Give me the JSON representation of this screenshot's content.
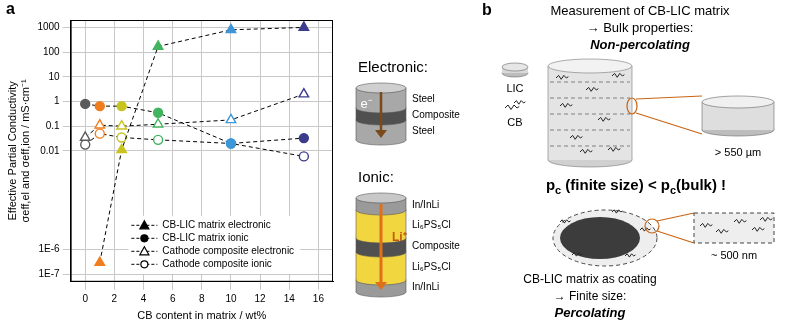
{
  "chart_data": {
    "type": "line",
    "x": [
      0,
      1,
      2.5,
      5,
      10,
      15
    ],
    "xlabel": "CB content in matrix / wt%",
    "ylabel": [
      "Effective Partial Conductivity",
      "σeff,el and σeff,ion / mS·cm⁻¹"
    ],
    "xlim": [
      -1,
      17
    ],
    "xticks": [
      0,
      2,
      4,
      6,
      8,
      10,
      12,
      14,
      16
    ],
    "ylim": [
      5e-08,
      2000
    ],
    "yticks": [
      {
        "value": 1e-07,
        "label": "1E-7"
      },
      {
        "value": 1e-06,
        "label": "1E-6"
      },
      0.01,
      0.1,
      1,
      10,
      100,
      1000
    ],
    "log": "y",
    "grid": true,
    "legend": "lower left",
    "colors": [
      "#5a5a5a",
      "#f07d1e",
      "#c8c31e",
      "#41b45f",
      "#3c96d7",
      "#3c3c8c"
    ],
    "series": [
      {
        "name": "CB-LIC matrix electronic",
        "color": "#000000",
        "marker": "triangle",
        "line_style": "dashed",
        "values": [
          null,
          3e-07,
          0.011,
          170,
          800,
          1000
        ]
      },
      {
        "name": "CB-LIC matrix ionic",
        "color": "#000000",
        "marker": "circle",
        "line_style": "dashed",
        "values": [
          0.8,
          0.65,
          0.65,
          0.35,
          0.02,
          0.033
        ]
      },
      {
        "name": "Cathode composite electronic",
        "color": "#000000",
        "marker": "triangle-open",
        "line_style": "dashed",
        "values": [
          0.035,
          0.11,
          0.1,
          0.12,
          0.18,
          2
        ]
      },
      {
        "name": "Cathode composite ionic",
        "color": "#000000",
        "marker": "circle-open",
        "line_style": "dashed",
        "values": [
          0.018,
          0.05,
          0.035,
          0.028,
          0.02,
          0.006
        ]
      }
    ]
  },
  "panel_labels": [
    "a",
    "b"
  ],
  "electronic_cell": {
    "title": "Electronic:",
    "carrier": "e⁻",
    "layers": [
      "Steel",
      "Composite",
      "Steel"
    ]
  },
  "ionic_cell": {
    "title": "Ionic:",
    "carrier": "Li⁺",
    "layers": [
      "In/InLi",
      "Li₆PS₅Cl",
      "Composite",
      "Li₆PS₅Cl",
      "In/InLi"
    ]
  },
  "panel_b": {
    "header": [
      "Measurement of CB-LIC matrix",
      "→ Bulk properties:"
    ],
    "bulk_state": "Non-percolating",
    "icons": [
      "LIC",
      "CB"
    ],
    "bulk_size": "> 550 µm",
    "statement": [
      {
        "text": "p"
      },
      {
        "text": "c",
        "sub": true
      },
      {
        "text": " (finite size) < p"
      },
      {
        "text": "c",
        "sub": true
      },
      {
        "text": "(bulk) !"
      }
    ],
    "coating_size": "~ 500 nm",
    "coating": [
      "CB-LIC matrix as coating",
      "→ Finite size:"
    ],
    "coating_state": "Percolating"
  }
}
